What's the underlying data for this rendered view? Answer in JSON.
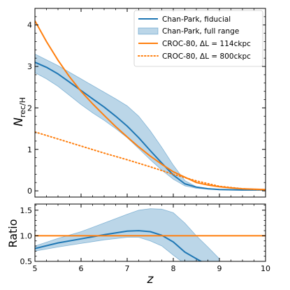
{
  "chart_data": [
    {
      "type": "line",
      "xlabel": "",
      "ylabel_main": "N",
      "ylabel_sub": "rec/H",
      "xlim": [
        5,
        10
      ],
      "ylim": [
        -0.15,
        4.4
      ],
      "x_ticks": [
        5,
        6,
        7,
        8,
        9,
        10
      ],
      "y_ticks": [
        0,
        1,
        2,
        3,
        4
      ],
      "y_tick_labels": [
        "0",
        "1",
        "2",
        "3",
        "4"
      ],
      "legend_position": "top-right",
      "series": [
        {
          "name": "Chan-Park, fiducial",
          "style": "solid",
          "color": "#1f77b4",
          "x": [
            5.0,
            5.25,
            5.5,
            5.75,
            6.0,
            6.25,
            6.5,
            6.75,
            7.0,
            7.25,
            7.5,
            7.75,
            8.0,
            8.25,
            8.5,
            8.75,
            9.0,
            9.5,
            10.0
          ],
          "y": [
            3.1,
            2.98,
            2.82,
            2.62,
            2.42,
            2.22,
            2.02,
            1.8,
            1.56,
            1.28,
            0.97,
            0.67,
            0.38,
            0.17,
            0.09,
            0.05,
            0.03,
            0.02,
            0.02
          ]
        },
        {
          "name": "Chan-Park, full range",
          "style": "band",
          "color": "#1f77b4",
          "x": [
            5.0,
            5.25,
            5.5,
            5.75,
            6.0,
            6.25,
            6.5,
            6.75,
            7.0,
            7.25,
            7.5,
            7.75,
            8.0,
            8.25,
            8.5,
            8.75,
            9.0,
            9.5,
            10.0
          ],
          "upper": [
            3.3,
            3.16,
            3.02,
            2.86,
            2.7,
            2.54,
            2.38,
            2.22,
            2.05,
            1.8,
            1.45,
            1.05,
            0.62,
            0.25,
            0.1,
            0.06,
            0.04,
            0.03,
            0.02
          ],
          "lower": [
            2.85,
            2.7,
            2.52,
            2.3,
            2.08,
            1.88,
            1.7,
            1.5,
            1.28,
            1.02,
            0.75,
            0.5,
            0.28,
            0.12,
            0.06,
            0.04,
            0.03,
            0.02,
            0.02
          ]
        },
        {
          "name": "CROC-80, ΔL = 114ckpc",
          "style": "solid",
          "color": "#ff7f0e",
          "x": [
            5.0,
            5.25,
            5.5,
            5.75,
            6.0,
            6.25,
            6.5,
            6.75,
            7.0,
            7.25,
            7.5,
            7.75,
            8.0,
            8.25,
            8.5,
            8.75,
            9.0,
            9.25,
            9.5,
            10.0
          ],
          "y": [
            4.1,
            3.6,
            3.15,
            2.75,
            2.4,
            2.1,
            1.82,
            1.55,
            1.3,
            1.06,
            0.84,
            0.64,
            0.46,
            0.33,
            0.2,
            0.14,
            0.1,
            0.07,
            0.05,
            0.03
          ]
        },
        {
          "name": "CROC-80, ΔL = 800ckpc",
          "style": "dotted",
          "color": "#ff7f0e",
          "x": [
            5.0,
            5.5,
            6.0,
            6.5,
            7.0,
            7.5,
            8.0,
            8.5,
            9.0,
            9.5,
            10.0
          ],
          "y": [
            1.42,
            1.25,
            1.08,
            0.91,
            0.75,
            0.58,
            0.4,
            0.24,
            0.11,
            0.05,
            0.02
          ]
        }
      ]
    },
    {
      "type": "line",
      "xlabel": "z",
      "ylabel": "Ratio",
      "xlim": [
        5,
        10
      ],
      "ylim": [
        0.5,
        1.62
      ],
      "x_ticks": [
        5,
        6,
        7,
        8,
        9,
        10
      ],
      "x_tick_labels": [
        "5",
        "6",
        "7",
        "8",
        "9",
        "10"
      ],
      "y_ticks": [
        0.5,
        1.0,
        1.5
      ],
      "y_tick_labels": [
        "0.5",
        "1.0",
        "1.5"
      ],
      "series": [
        {
          "name": "Chan-Park, fiducial / CROC-80",
          "style": "solid",
          "color": "#1f77b4",
          "x": [
            5.0,
            5.5,
            6.0,
            6.5,
            7.0,
            7.25,
            7.5,
            7.75,
            8.0,
            8.25,
            8.5,
            8.7
          ],
          "y": [
            0.75,
            0.86,
            0.94,
            1.02,
            1.09,
            1.1,
            1.08,
            1.01,
            0.88,
            0.68,
            0.55,
            0.45
          ]
        },
        {
          "name": "Chan-Park, full range / CROC-80",
          "style": "band",
          "color": "#1f77b4",
          "x": [
            5.0,
            5.5,
            6.0,
            6.5,
            7.0,
            7.25,
            7.5,
            7.75,
            8.0,
            8.25,
            8.5,
            8.75,
            9.0
          ],
          "upper": [
            0.8,
            0.95,
            1.08,
            1.25,
            1.42,
            1.5,
            1.53,
            1.52,
            1.45,
            1.25,
            1.0,
            0.78,
            0.55
          ],
          "lower": [
            0.7,
            0.78,
            0.85,
            0.92,
            0.97,
            0.97,
            0.9,
            0.8,
            0.62,
            0.45,
            0.35,
            0.3,
            0.3
          ]
        },
        {
          "name": "CROC-80 reference",
          "style": "solid",
          "color": "#ff7f0e",
          "x": [
            5.0,
            10.0
          ],
          "y": [
            1.0,
            1.0
          ]
        }
      ]
    }
  ]
}
